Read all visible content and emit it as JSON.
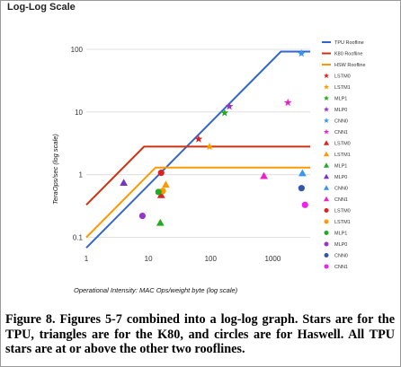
{
  "chart_data": {
    "type": "scatter",
    "title": "Log-Log Scale",
    "xlabel": "Operational Intensity: MAC Ops/weight byte (log scale)",
    "ylabel": "TeraOps/sec (log scale)",
    "xscale": "log",
    "yscale": "log",
    "xlim": [
      1,
      4000
    ],
    "ylim": [
      0.06,
      100
    ],
    "x_ticks": [
      "1",
      "10",
      "100",
      "1000"
    ],
    "y_ticks": [
      "0.1",
      "1",
      "10",
      "100"
    ],
    "grid": "horizontal",
    "legend_position": "right",
    "rooflines": [
      {
        "name": "TPU Roofline",
        "color": "#3366cc",
        "points": [
          [
            1,
            0.068
          ],
          [
            1350,
            92
          ],
          [
            4000,
            92
          ]
        ]
      },
      {
        "name": "K80 Roofline",
        "color": "#cc3311",
        "points": [
          [
            1,
            0.33
          ],
          [
            8.5,
            2.8
          ],
          [
            4000,
            2.8
          ]
        ]
      },
      {
        "name": "HSW Roofline",
        "color": "#ff9900",
        "points": [
          [
            1,
            0.1
          ],
          [
            13,
            1.3
          ],
          [
            4000,
            1.3
          ]
        ]
      }
    ],
    "series": [
      {
        "name": "LSTM0",
        "marker": "star",
        "color": "#dd2222",
        "x": 64,
        "y": 3.7
      },
      {
        "name": "LSTM1",
        "marker": "star",
        "color": "#ff9900",
        "x": 96,
        "y": 2.8
      },
      {
        "name": "MLP1",
        "marker": "star",
        "color": "#22aa22",
        "x": 168,
        "y": 9.7
      },
      {
        "name": "MLP0",
        "marker": "star",
        "color": "#9933cc",
        "x": 200,
        "y": 12.3
      },
      {
        "name": "CNN0",
        "marker": "star",
        "color": "#3399ee",
        "x": 2888,
        "y": 86
      },
      {
        "name": "CNN1",
        "marker": "star",
        "color": "#ee22cc",
        "x": 1750,
        "y": 14.1
      },
      {
        "name": "LSTM0",
        "marker": "triangle",
        "color": "#dd2222",
        "x": 16,
        "y": 0.47
      },
      {
        "name": "LSTM1",
        "marker": "triangle",
        "color": "#ff9900",
        "x": 19,
        "y": 0.69
      },
      {
        "name": "MLP1",
        "marker": "triangle",
        "color": "#22aa22",
        "x": 15.5,
        "y": 0.17
      },
      {
        "name": "MLP0",
        "marker": "triangle",
        "color": "#7733cc",
        "x": 4,
        "y": 0.74
      },
      {
        "name": "CNN0",
        "marker": "triangle",
        "color": "#3399ee",
        "x": 3000,
        "y": 1.05
      },
      {
        "name": "CNN1",
        "marker": "triangle",
        "color": "#ee22cc",
        "x": 720,
        "y": 0.95
      },
      {
        "name": "LSTM0",
        "marker": "circle",
        "color": "#dd2222",
        "x": 16,
        "y": 1.07
      },
      {
        "name": "LSTM1",
        "marker": "circle",
        "color": "#ff9900",
        "x": 17,
        "y": 0.55
      },
      {
        "name": "MLP1",
        "marker": "circle",
        "color": "#22aa22",
        "x": 14.5,
        "y": 0.53
      },
      {
        "name": "MLP0",
        "marker": "circle",
        "color": "#9933cc",
        "x": 8,
        "y": 0.22
      },
      {
        "name": "CNN0",
        "marker": "circle",
        "color": "#3355aa",
        "x": 2900,
        "y": 0.61
      },
      {
        "name": "CNN1",
        "marker": "circle",
        "color": "#ee22ee",
        "x": 3300,
        "y": 0.33
      }
    ],
    "legend": [
      {
        "label": "TPU Roofline",
        "type": "line",
        "color": "#3366cc"
      },
      {
        "label": "K80 Roofline",
        "type": "line",
        "color": "#cc3311"
      },
      {
        "label": "HSW Roofline",
        "type": "line",
        "color": "#ff9900"
      },
      {
        "label": "LSTM0",
        "type": "star",
        "color": "#dd2222"
      },
      {
        "label": "LSTM1",
        "type": "star",
        "color": "#ff9900"
      },
      {
        "label": "MLP1",
        "type": "star",
        "color": "#22aa22"
      },
      {
        "label": "MLP0",
        "type": "star",
        "color": "#9933cc"
      },
      {
        "label": "CNN0",
        "type": "star",
        "color": "#3399ee"
      },
      {
        "label": "CNN1",
        "type": "star",
        "color": "#ee22cc"
      },
      {
        "label": "LSTM0",
        "type": "triangle",
        "color": "#dd2222"
      },
      {
        "label": "LSTM1",
        "type": "triangle",
        "color": "#ff9900"
      },
      {
        "label": "MLP1",
        "type": "triangle",
        "color": "#22aa22"
      },
      {
        "label": "MLP0",
        "type": "triangle",
        "color": "#7733cc"
      },
      {
        "label": "CNN0",
        "type": "triangle",
        "color": "#3399ee"
      },
      {
        "label": "CNN1",
        "type": "triangle",
        "color": "#ee22cc"
      },
      {
        "label": "LSTM0",
        "type": "circle",
        "color": "#dd2222"
      },
      {
        "label": "LSTM1",
        "type": "circle",
        "color": "#ff9900"
      },
      {
        "label": "MLP1",
        "type": "circle",
        "color": "#22aa22"
      },
      {
        "label": "MLP0",
        "type": "circle",
        "color": "#9933cc"
      },
      {
        "label": "CNN0",
        "type": "circle",
        "color": "#3355aa"
      },
      {
        "label": "CNN1",
        "type": "circle",
        "color": "#ee22ee"
      }
    ]
  },
  "caption": "Figure 8. Figures 5-7 combined into a log-log graph. Stars are for the TPU, triangles are for the K80, and circles are for Haswell. All TPU stars are at or above the other two rooflines."
}
